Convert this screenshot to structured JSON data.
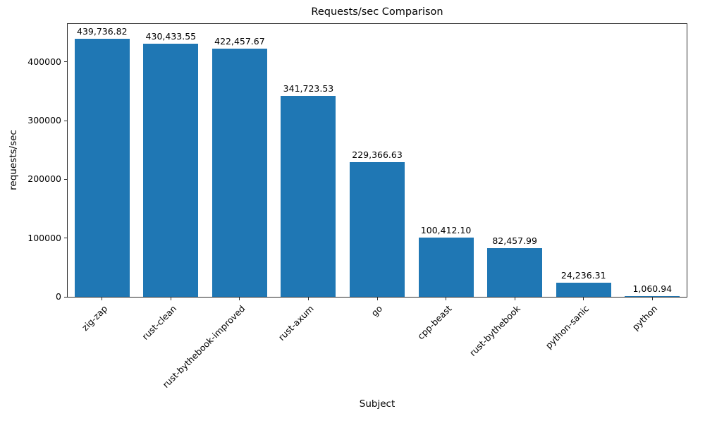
{
  "chart_data": {
    "type": "bar",
    "title": "Requests/sec Comparison",
    "xlabel": "Subject",
    "ylabel": "requests/sec",
    "categories": [
      "zig-zap",
      "rust-clean",
      "rust-bythebook-improved",
      "rust-axum",
      "go",
      "cpp-beast",
      "rust-bythebook",
      "python-sanic",
      "python"
    ],
    "values": [
      439736.82,
      430433.55,
      422457.67,
      341723.53,
      229366.63,
      100412.1,
      82457.99,
      24236.31,
      1060.94
    ],
    "value_labels": [
      "439,736.82",
      "430,433.55",
      "422,457.67",
      "341,723.53",
      "229,366.63",
      "100,412.10",
      "82,457.99",
      "24,236.31",
      "1,060.94"
    ],
    "bar_color": "#1f77b4",
    "ylim": [
      0,
      464478
    ],
    "yticks": [
      0,
      100000,
      200000,
      300000,
      400000
    ],
    "grid": false,
    "legend": "none",
    "x_tick_rotation_deg": 45
  }
}
